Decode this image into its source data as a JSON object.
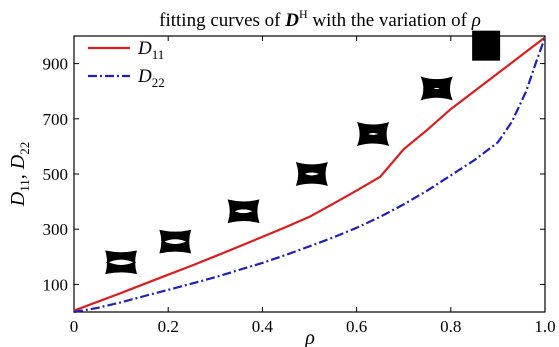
{
  "chart_data": {
    "type": "line",
    "title": {
      "text_before": "fitting curves of ",
      "symbol": "D",
      "superscript": "H",
      "text_after": " with the variation of ",
      "variable": "ρ"
    },
    "xlabel": "ρ",
    "ylabel": {
      "d1": "D",
      "d1_sub": "11",
      "sep": ", ",
      "d2": "D",
      "d2_sub": "22"
    },
    "xlim": [
      0,
      1.0
    ],
    "ylim": [
      0,
      1000
    ],
    "xticks": [
      "0",
      "0.2",
      "0.4",
      "0.6",
      "0.8",
      "1.0"
    ],
    "yticks": [
      "100",
      "300",
      "500",
      "700",
      "900"
    ],
    "legend_position": "top-left",
    "series": [
      {
        "name": "D11",
        "label_main": "D",
        "label_sub": "11",
        "color": "#dd1c1c",
        "line_style": "solid",
        "x": [
          0,
          0.05,
          0.1,
          0.15,
          0.2,
          0.25,
          0.3,
          0.35,
          0.4,
          0.45,
          0.5,
          0.55,
          0.6,
          0.65,
          0.7,
          0.75,
          0.8,
          0.85,
          0.9,
          0.95,
          1.0
        ],
        "y": [
          5,
          37,
          69,
          102,
          135,
          168,
          202,
          237,
          272,
          308,
          345,
          392,
          440,
          490,
          590,
          660,
          735,
          800,
          865,
          930,
          995
        ]
      },
      {
        "name": "D22",
        "label_main": "D",
        "label_sub": "22",
        "color": "#1f1fbf",
        "line_style": "dash-dot",
        "x": [
          0,
          0.05,
          0.1,
          0.15,
          0.2,
          0.25,
          0.3,
          0.35,
          0.4,
          0.45,
          0.5,
          0.55,
          0.6,
          0.65,
          0.7,
          0.75,
          0.8,
          0.85,
          0.9,
          0.93,
          0.96,
          0.98,
          1.0
        ],
        "y": [
          0,
          15,
          35,
          58,
          80,
          103,
          126,
          152,
          178,
          207,
          238,
          270,
          305,
          345,
          390,
          440,
          495,
          550,
          615,
          690,
          800,
          900,
          995
        ]
      }
    ],
    "insets": [
      {
        "name": "microstructure-rho-0.1",
        "x": 0.1,
        "y": 180,
        "fill": 0.1
      },
      {
        "name": "microstructure-rho-0.2",
        "x": 0.215,
        "y": 255,
        "fill": 0.2
      },
      {
        "name": "microstructure-rho-0.35",
        "x": 0.36,
        "y": 365,
        "fill": 0.35
      },
      {
        "name": "microstructure-rho-0.5",
        "x": 0.505,
        "y": 500,
        "fill": 0.5
      },
      {
        "name": "microstructure-rho-0.65",
        "x": 0.635,
        "y": 645,
        "fill": 0.65
      },
      {
        "name": "microstructure-rho-0.8",
        "x": 0.77,
        "y": 810,
        "fill": 0.8
      },
      {
        "name": "microstructure-rho-1.0",
        "x": 0.875,
        "y": 965,
        "fill": 1.0
      }
    ]
  }
}
